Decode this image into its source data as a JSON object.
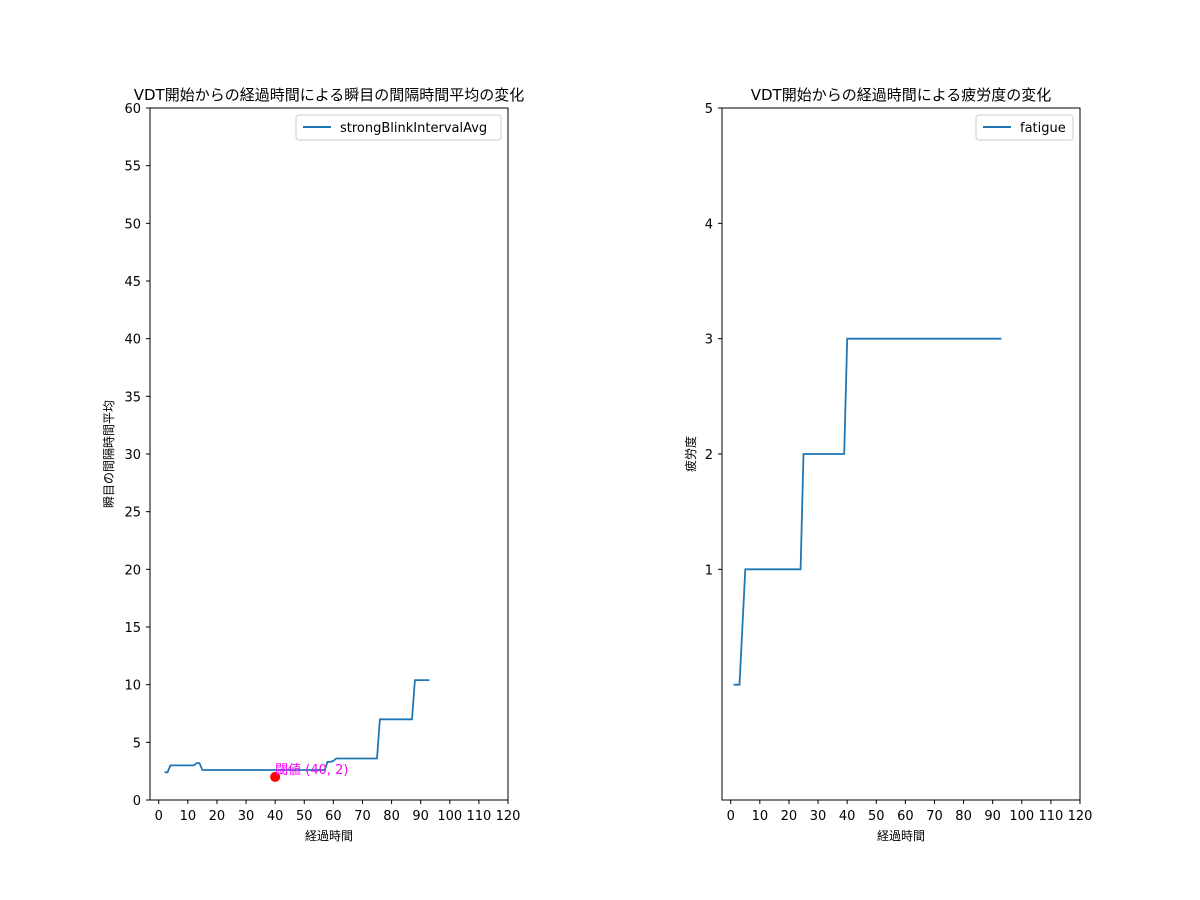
{
  "chart_data": [
    {
      "type": "line",
      "title": "VDT開始からの経過時間による瞬目の間隔時間平均の変化",
      "xlabel": "経過時間",
      "ylabel": "瞬目の間隔時間平均",
      "xlim": [
        -3,
        120
      ],
      "ylim": [
        0,
        60
      ],
      "xticks": [
        "0",
        "10",
        "20",
        "30",
        "40",
        "50",
        "60",
        "70",
        "80",
        "90",
        "100",
        "110",
        "120"
      ],
      "yticks": [
        "0",
        "5",
        "10",
        "15",
        "20",
        "25",
        "30",
        "35",
        "40",
        "45",
        "50",
        "55",
        "60"
      ],
      "legend": "top-right",
      "grid": false,
      "series": [
        {
          "name": "strongBlinkIntervalAvg",
          "color": "#1f77b4",
          "x": [
            2,
            3,
            4,
            12,
            13,
            14,
            15,
            16,
            57,
            58,
            59,
            60,
            61,
            62,
            75,
            76,
            87,
            88,
            93
          ],
          "y": [
            2.4,
            2.4,
            3.0,
            3.0,
            3.2,
            3.2,
            2.6,
            2.6,
            2.6,
            3.3,
            3.3,
            3.4,
            3.6,
            3.6,
            3.6,
            7.0,
            7.0,
            10.4,
            10.4
          ]
        }
      ],
      "annotation": {
        "text": "閾値 (40, 2)",
        "x": 40,
        "y": 2,
        "color": "#ff00ff",
        "marker_color": "#ff0000"
      }
    },
    {
      "type": "line",
      "title": "VDT開始からの経過時間による疲労度の変化",
      "xlabel": "経過時間",
      "ylabel": "疲労度",
      "xlim": [
        -3,
        120
      ],
      "ylim": [
        -1,
        5
      ],
      "xticks": [
        "0",
        "10",
        "20",
        "30",
        "40",
        "50",
        "60",
        "70",
        "80",
        "90",
        "100",
        "110",
        "120"
      ],
      "yticks": [
        "1",
        "2",
        "3",
        "4",
        "5"
      ],
      "legend": "top-right",
      "grid": false,
      "series": [
        {
          "name": "fatigue",
          "color": "#1f77b4",
          "x": [
            1,
            3,
            5,
            24,
            25,
            39,
            40,
            93
          ],
          "y": [
            0,
            0,
            1,
            1,
            2,
            2,
            3,
            3
          ]
        }
      ]
    }
  ]
}
